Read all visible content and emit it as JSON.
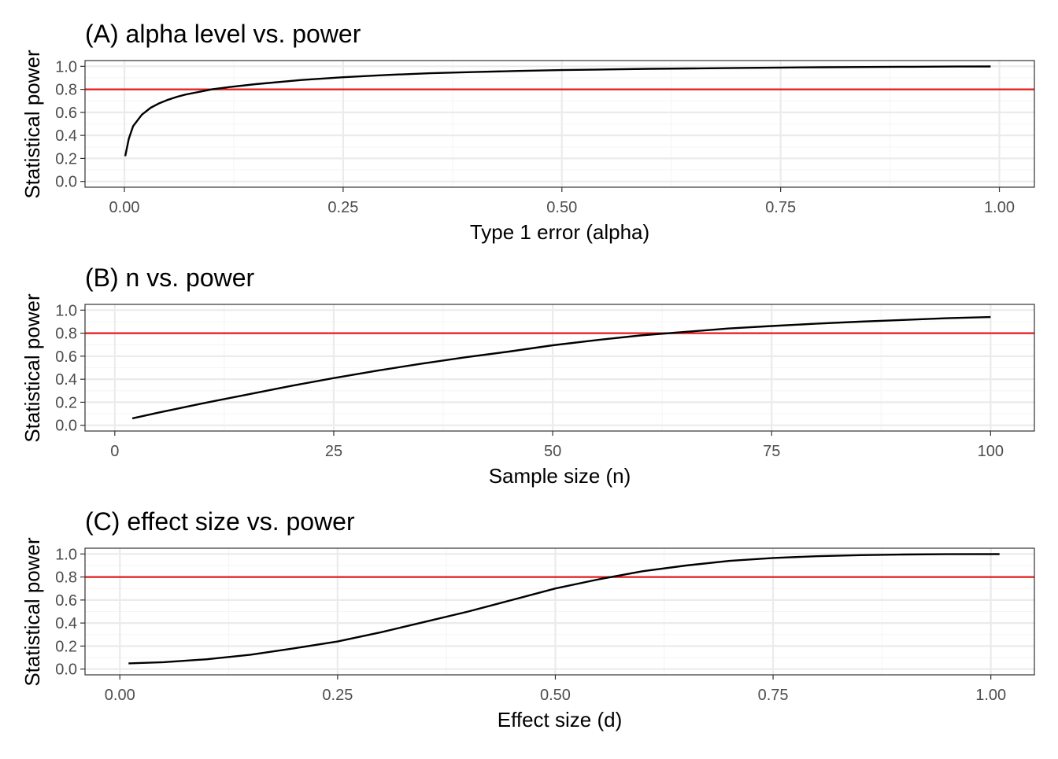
{
  "colors": {
    "background": "#ffffff",
    "panel_border": "#333333",
    "grid_major": "#ebebeb",
    "grid_minor": "#f5f5f5",
    "curve": "#000000",
    "reference_line": "#e41a1c",
    "tick_text": "#4d4d4d"
  },
  "chart_data": [
    {
      "type": "line",
      "title": "(A) alpha level vs. power",
      "xlabel": "Type 1 error (alpha)",
      "ylabel": "Statistical power",
      "xlim": [
        -0.045,
        1.04
      ],
      "ylim": [
        -0.05,
        1.05
      ],
      "x_ticks": [
        0,
        0.25,
        0.5,
        0.75,
        1.0
      ],
      "x_tick_labels": [
        "0.00",
        "0.25",
        "0.50",
        "0.75",
        "1.00"
      ],
      "y_ticks": [
        0,
        0.2,
        0.4,
        0.6,
        0.8,
        1.0
      ],
      "y_tick_labels": [
        "0.0",
        "0.2",
        "0.4",
        "0.6",
        "0.8",
        "1.0"
      ],
      "reference_y": 0.8,
      "grid": true,
      "series": [
        {
          "x": [
            0.001,
            0.005,
            0.01,
            0.02,
            0.03,
            0.04,
            0.05,
            0.06,
            0.07,
            0.08,
            0.09,
            0.1,
            0.12,
            0.15,
            0.2,
            0.25,
            0.3,
            0.35,
            0.4,
            0.45,
            0.5,
            0.55,
            0.6,
            0.65,
            0.7,
            0.75,
            0.8,
            0.85,
            0.9,
            0.95,
            0.99
          ],
          "y": [
            0.22,
            0.37,
            0.48,
            0.58,
            0.64,
            0.68,
            0.71,
            0.735,
            0.755,
            0.77,
            0.785,
            0.8,
            0.82,
            0.845,
            0.88,
            0.905,
            0.925,
            0.94,
            0.95,
            0.96,
            0.967,
            0.973,
            0.978,
            0.982,
            0.986,
            0.989,
            0.992,
            0.994,
            0.996,
            0.998,
            0.999
          ]
        }
      ]
    },
    {
      "type": "line",
      "title": "(B) n vs. power",
      "xlabel": "Sample size (n)",
      "ylabel": "Statistical power",
      "xlim": [
        -3.4,
        105
      ],
      "ylim": [
        -0.05,
        1.05
      ],
      "x_ticks": [
        0,
        25,
        50,
        75,
        100
      ],
      "x_tick_labels": [
        "0",
        "25",
        "50",
        "75",
        "100"
      ],
      "y_ticks": [
        0,
        0.2,
        0.4,
        0.6,
        0.8,
        1.0
      ],
      "y_tick_labels": [
        "0.0",
        "0.2",
        "0.4",
        "0.6",
        "0.8",
        "1.0"
      ],
      "reference_y": 0.8,
      "grid": true,
      "series": [
        {
          "x": [
            2,
            5,
            10,
            15,
            20,
            25,
            30,
            35,
            40,
            45,
            50,
            55,
            60,
            65,
            70,
            75,
            80,
            85,
            90,
            95,
            100
          ],
          "y": [
            0.06,
            0.11,
            0.19,
            0.265,
            0.34,
            0.41,
            0.475,
            0.535,
            0.59,
            0.64,
            0.695,
            0.74,
            0.78,
            0.81,
            0.84,
            0.862,
            0.882,
            0.9,
            0.915,
            0.93,
            0.94
          ]
        }
      ]
    },
    {
      "type": "line",
      "title": "(C) effect size vs. power",
      "xlabel": "Effect size (d)",
      "ylabel": "Statistical power",
      "xlim": [
        -0.04,
        1.05
      ],
      "ylim": [
        -0.05,
        1.05
      ],
      "x_ticks": [
        0,
        0.25,
        0.5,
        0.75,
        1.0
      ],
      "x_tick_labels": [
        "0.00",
        "0.25",
        "0.50",
        "0.75",
        "1.00"
      ],
      "y_ticks": [
        0,
        0.2,
        0.4,
        0.6,
        0.8,
        1.0
      ],
      "y_tick_labels": [
        "0.0",
        "0.2",
        "0.4",
        "0.6",
        "0.8",
        "1.0"
      ],
      "reference_y": 0.8,
      "grid": true,
      "series": [
        {
          "x": [
            0.01,
            0.05,
            0.1,
            0.15,
            0.2,
            0.25,
            0.3,
            0.35,
            0.4,
            0.45,
            0.5,
            0.55,
            0.6,
            0.65,
            0.7,
            0.75,
            0.8,
            0.85,
            0.9,
            0.95,
            1.01
          ],
          "y": [
            0.05,
            0.06,
            0.085,
            0.125,
            0.18,
            0.24,
            0.32,
            0.41,
            0.5,
            0.6,
            0.7,
            0.78,
            0.85,
            0.9,
            0.94,
            0.965,
            0.98,
            0.99,
            0.995,
            0.998,
            0.999
          ]
        }
      ]
    }
  ]
}
